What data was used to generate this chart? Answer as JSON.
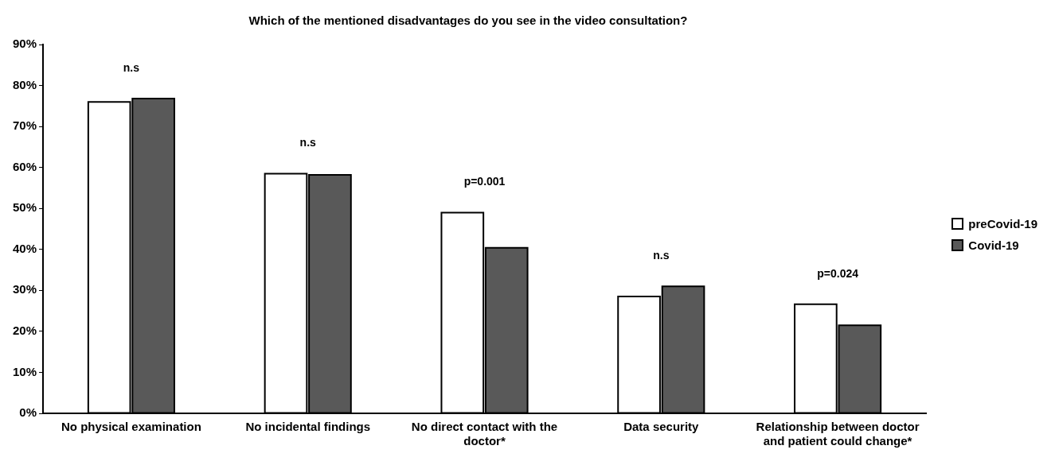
{
  "chart_data": {
    "type": "bar",
    "title": "Which of the mentioned disadvantages do you see in the video consultation?",
    "categories": [
      "No physical examination",
      "No incidental findings",
      "No direct contact with the doctor*",
      "Data security",
      "Relationship between doctor and patient could change*"
    ],
    "series": [
      {
        "name": "preCovid-19",
        "color": "#ffffff",
        "values": [
          76,
          58.5,
          49,
          28.5,
          26.6
        ]
      },
      {
        "name": "Covid-19",
        "color": "#595959",
        "values": [
          76.8,
          58.2,
          40.4,
          31,
          21.5
        ]
      }
    ],
    "ylim": [
      0,
      90
    ],
    "yticks": [
      {
        "value": 0,
        "label": "0%"
      },
      {
        "value": 10,
        "label": "10%"
      },
      {
        "value": 20,
        "label": "20%"
      },
      {
        "value": 30,
        "label": "30%"
      },
      {
        "value": 40,
        "label": "40%"
      },
      {
        "value": 50,
        "label": "50%"
      },
      {
        "value": 60,
        "label": "60%"
      },
      {
        "value": 70,
        "label": "70%"
      },
      {
        "value": 80,
        "label": "80%"
      },
      {
        "value": 90,
        "label": "90%"
      }
    ],
    "annotations": [
      "n.s",
      "n.s",
      "p=0.001",
      "n.s",
      "p=0.024"
    ],
    "grid": false,
    "legend": "right"
  }
}
